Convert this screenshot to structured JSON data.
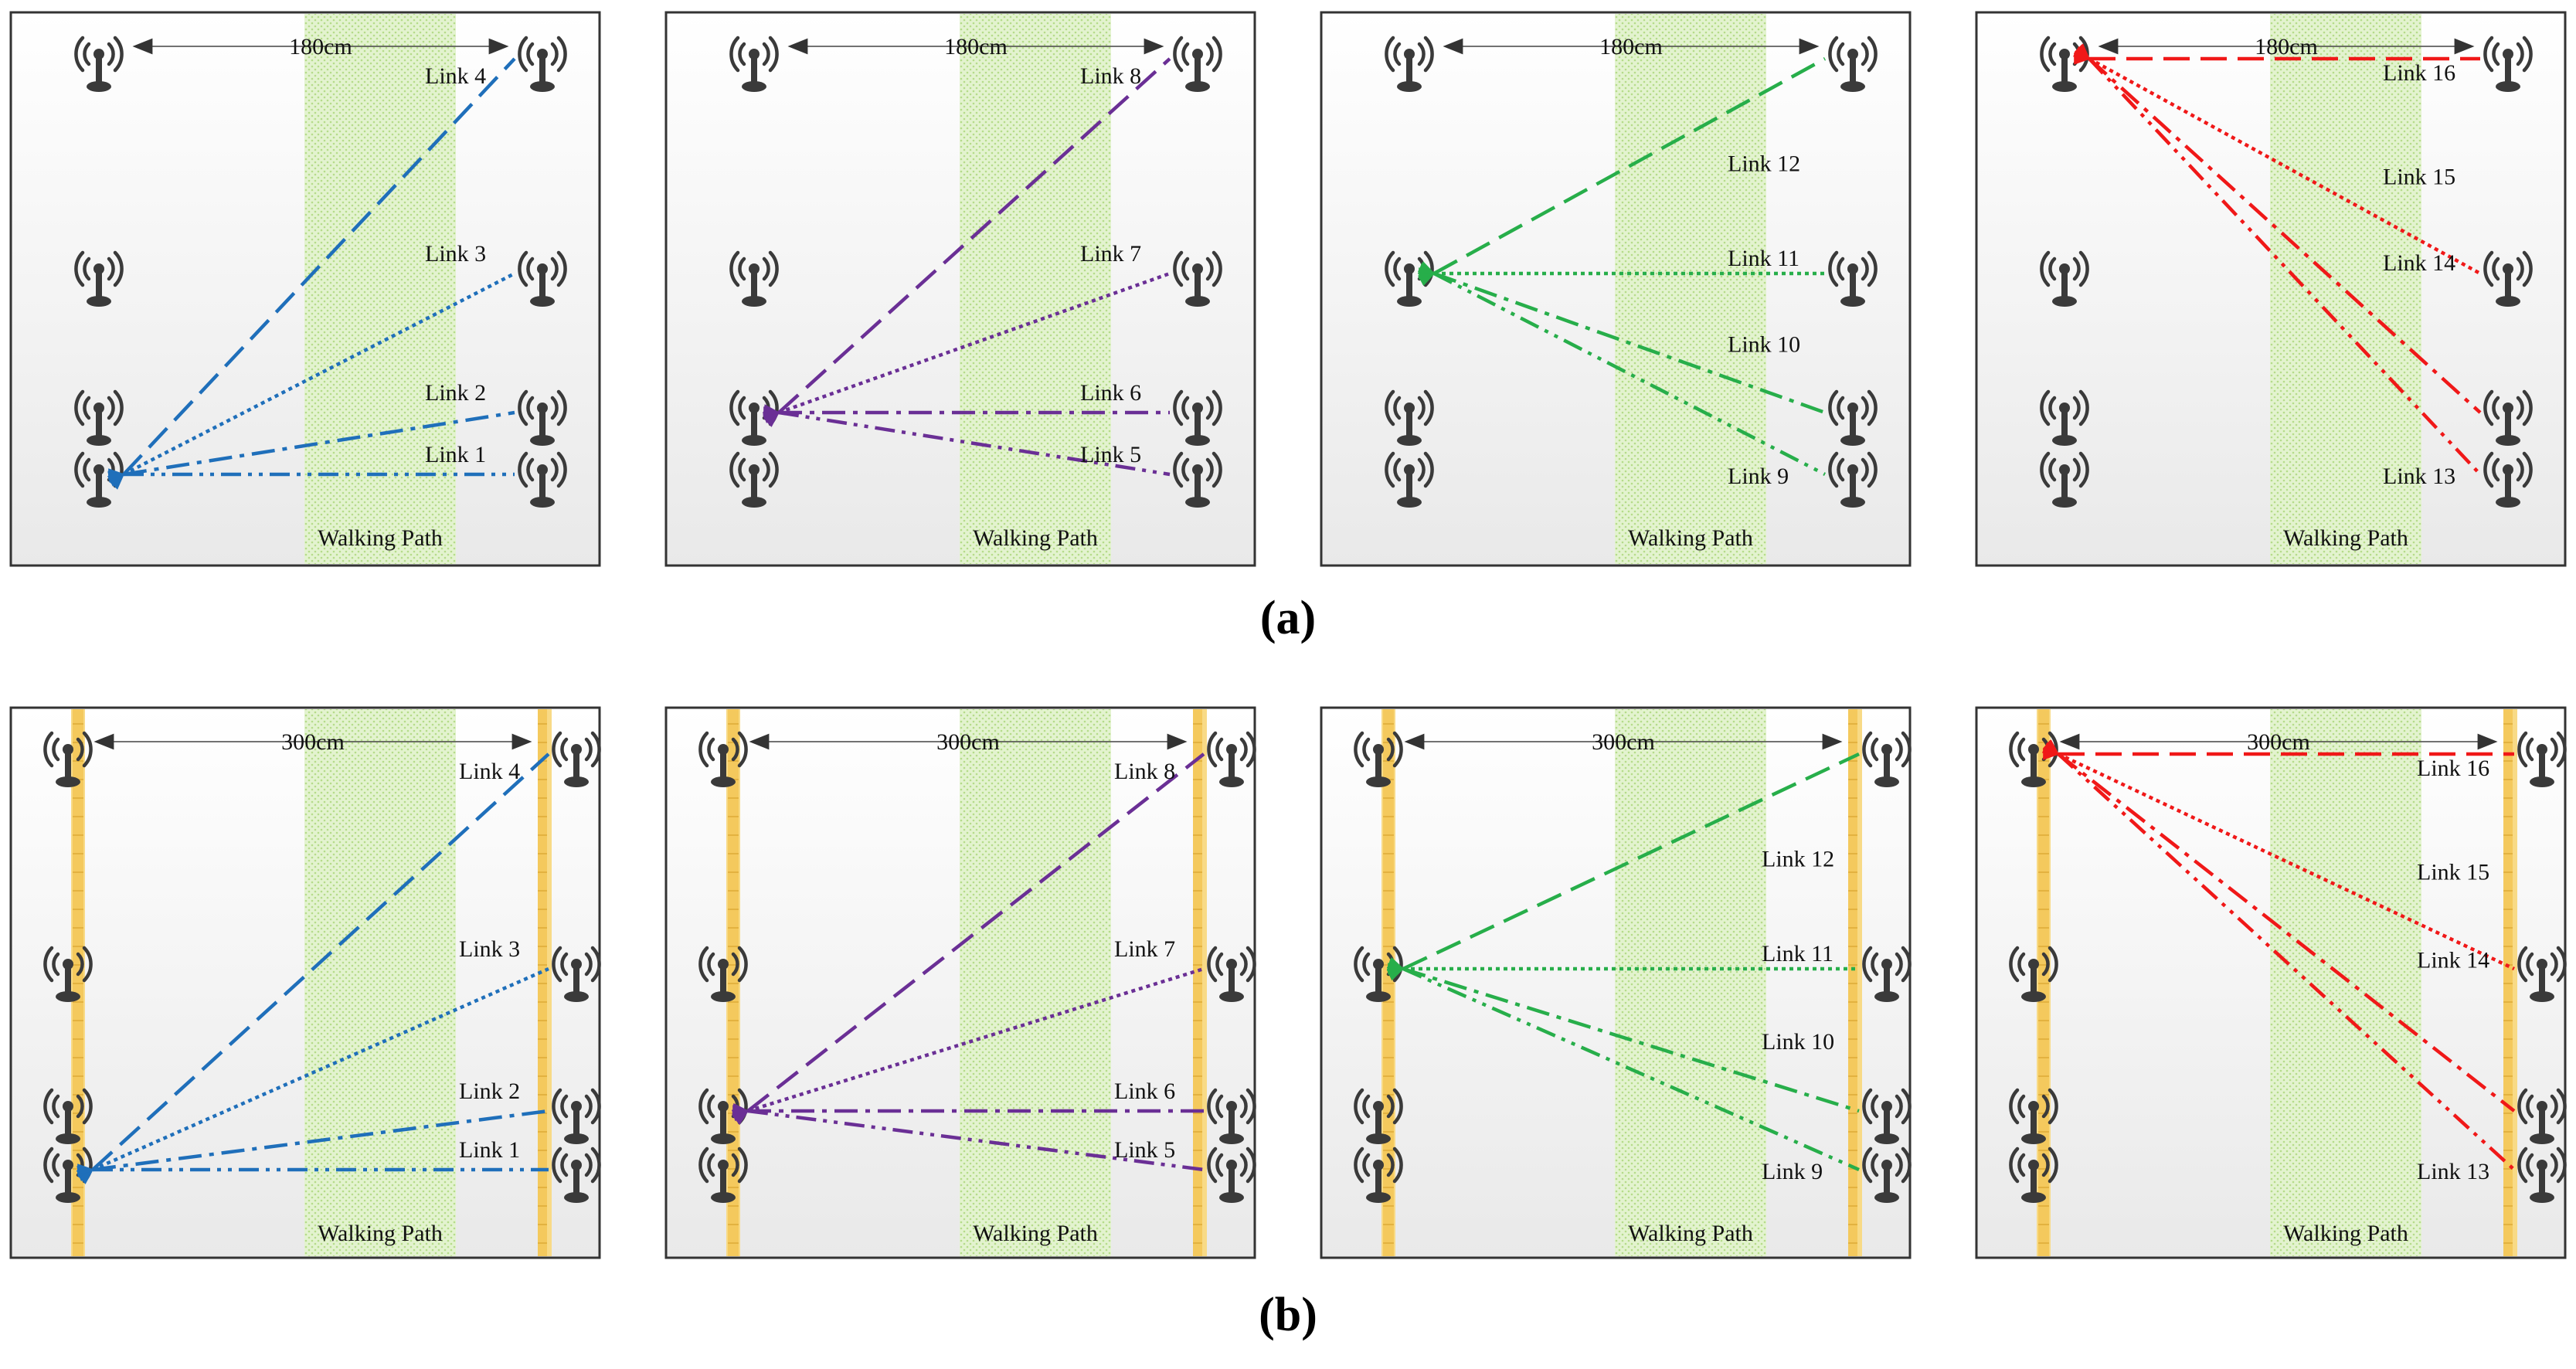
{
  "figure": {
    "captions": [
      "(a)",
      "(b)"
    ],
    "walking_path_label": "Walking Path",
    "colors": {
      "group1": "#1f6fba",
      "group2": "#6a2f95",
      "group3": "#27ae4a",
      "group4": "#f01818",
      "walking_path": "#b8e08a",
      "post": "#f2c857",
      "panel_border": "#333333"
    },
    "icon": "antenna-icon",
    "rows": [
      {
        "caption": "(a)",
        "distance_label": "180cm",
        "has_posts": false,
        "panels": [
          {
            "group": "group1",
            "links": [
              {
                "label": "Link 4",
                "style": "dashed",
                "from": "left-bottom",
                "to": "right-top"
              },
              {
                "label": "Link 3",
                "style": "dotted",
                "from": "left-bottom",
                "to": "right-upper-mid"
              },
              {
                "label": "Link 2",
                "style": "dash-dot",
                "from": "left-bottom",
                "to": "right-lower-mid"
              },
              {
                "label": "Link 1",
                "style": "dash-dot-dot",
                "from": "left-bottom",
                "to": "right-bottom"
              }
            ]
          },
          {
            "group": "group2",
            "links": [
              {
                "label": "Link 8",
                "style": "dashed",
                "from": "left-lower-mid",
                "to": "right-top"
              },
              {
                "label": "Link 7",
                "style": "dotted",
                "from": "left-lower-mid",
                "to": "right-upper-mid"
              },
              {
                "label": "Link 6",
                "style": "dash-dot",
                "from": "left-lower-mid",
                "to": "right-lower-mid"
              },
              {
                "label": "Link 5",
                "style": "dash-dot-dot",
                "from": "left-lower-mid",
                "to": "right-bottom"
              }
            ]
          },
          {
            "group": "group3",
            "links": [
              {
                "label": "Link 12",
                "style": "dashed",
                "from": "left-upper-mid",
                "to": "right-top"
              },
              {
                "label": "Link 11",
                "style": "dotted",
                "from": "left-upper-mid",
                "to": "right-upper-mid"
              },
              {
                "label": "Link 10",
                "style": "dash-dot",
                "from": "left-upper-mid",
                "to": "right-lower-mid"
              },
              {
                "label": "Link 9",
                "style": "dash-dot-dot",
                "from": "left-upper-mid",
                "to": "right-bottom"
              }
            ]
          },
          {
            "group": "group4",
            "links": [
              {
                "label": "Link 16",
                "style": "dashed",
                "from": "left-top",
                "to": "right-top"
              },
              {
                "label": "Link 15",
                "style": "dotted",
                "from": "left-top",
                "to": "right-upper-mid"
              },
              {
                "label": "Link 14",
                "style": "dash-dot",
                "from": "left-top",
                "to": "right-lower-mid"
              },
              {
                "label": "Link 13",
                "style": "dash-dot-dot",
                "from": "left-top",
                "to": "right-bottom"
              }
            ]
          }
        ]
      },
      {
        "caption": "(b)",
        "distance_label": "300cm",
        "has_posts": true,
        "panels": [
          {
            "group": "group1",
            "links": [
              {
                "label": "Link 4",
                "style": "dashed",
                "from": "left-bottom",
                "to": "right-top"
              },
              {
                "label": "Link 3",
                "style": "dotted",
                "from": "left-bottom",
                "to": "right-upper-mid"
              },
              {
                "label": "Link 2",
                "style": "dash-dot",
                "from": "left-bottom",
                "to": "right-lower-mid"
              },
              {
                "label": "Link 1",
                "style": "dash-dot-dot",
                "from": "left-bottom",
                "to": "right-bottom"
              }
            ]
          },
          {
            "group": "group2",
            "links": [
              {
                "label": "Link 8",
                "style": "dashed",
                "from": "left-lower-mid",
                "to": "right-top"
              },
              {
                "label": "Link 7",
                "style": "dotted",
                "from": "left-lower-mid",
                "to": "right-upper-mid"
              },
              {
                "label": "Link 6",
                "style": "dash-dot",
                "from": "left-lower-mid",
                "to": "right-lower-mid"
              },
              {
                "label": "Link 5",
                "style": "dash-dot-dot",
                "from": "left-lower-mid",
                "to": "right-bottom"
              }
            ]
          },
          {
            "group": "group3",
            "links": [
              {
                "label": "Link 12",
                "style": "dashed",
                "from": "left-upper-mid",
                "to": "right-top"
              },
              {
                "label": "Link 11",
                "style": "dotted",
                "from": "left-upper-mid",
                "to": "right-upper-mid"
              },
              {
                "label": "Link 10",
                "style": "dash-dot",
                "from": "left-upper-mid",
                "to": "right-lower-mid"
              },
              {
                "label": "Link 9",
                "style": "dash-dot-dot",
                "from": "left-upper-mid",
                "to": "right-bottom"
              }
            ]
          },
          {
            "group": "group4",
            "links": [
              {
                "label": "Link 16",
                "style": "dashed",
                "from": "left-top",
                "to": "right-top"
              },
              {
                "label": "Link 15",
                "style": "dotted",
                "from": "left-top",
                "to": "right-upper-mid"
              },
              {
                "label": "Link 14",
                "style": "dash-dot",
                "from": "left-top",
                "to": "right-lower-mid"
              },
              {
                "label": "Link 13",
                "style": "dash-dot-dot",
                "from": "left-top",
                "to": "right-bottom"
              }
            ]
          }
        ]
      }
    ]
  }
}
